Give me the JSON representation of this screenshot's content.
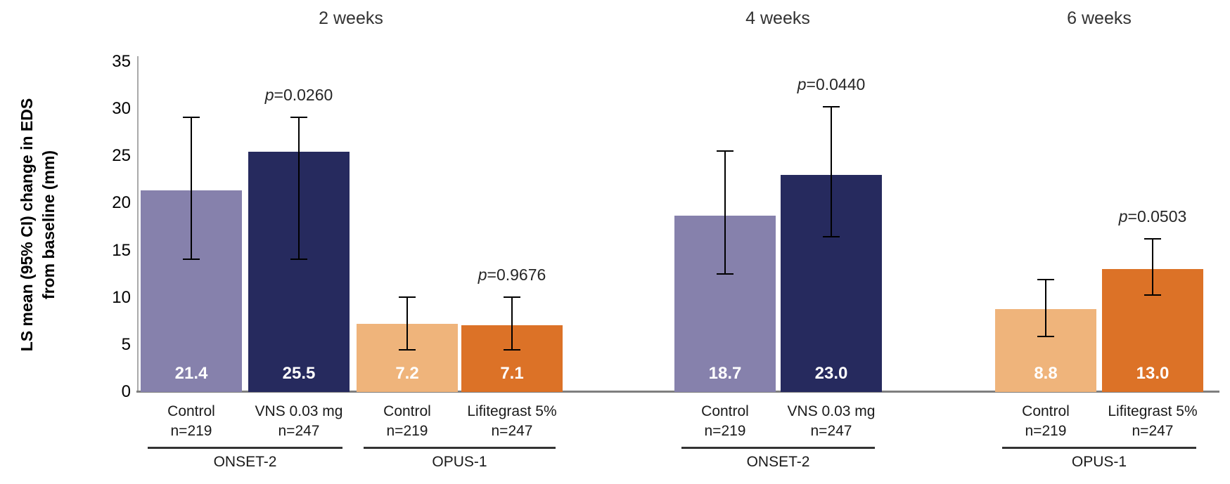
{
  "chart_data": {
    "type": "bar",
    "panel_headers": [
      "2 weeks",
      "4 weeks",
      "6 weeks"
    ],
    "ylabel_line1": "LS mean (95% CI) change in EDS",
    "ylabel_line2": "from baseline (mm)",
    "ylim": [
      0,
      35
    ],
    "yticks": [
      35,
      30,
      25,
      20,
      15,
      10,
      5,
      0
    ],
    "grid": false,
    "legend": "none",
    "colors": {
      "control_onset": "#8681AC",
      "vns": "#262A5E",
      "control_opus": "#EFB47B",
      "lifitegrast": "#DC7227",
      "axis_line": "#7f7f7f",
      "error_bar": "#000000",
      "value_text": "#ffffff"
    },
    "groups": [
      {
        "panel": "2 weeks",
        "trial": "ONSET-2",
        "bars": [
          {
            "label": "Control",
            "n": "n=219",
            "value": 21.4,
            "ci_low": 14.0,
            "ci_high": 29.2,
            "color": "control_onset",
            "p_value": null
          },
          {
            "label": "VNS 0.03 mg",
            "n": "n=247",
            "value": 25.5,
            "ci_low": 14.0,
            "ci_high": 29.2,
            "color": "vns",
            "p_value": "0.0260"
          }
        ]
      },
      {
        "panel": "2 weeks",
        "trial": "OPUS-1",
        "bars": [
          {
            "label": "Control",
            "n": "n=219",
            "value": 7.2,
            "ci_low": 4.4,
            "ci_high": 10.1,
            "color": "control_opus",
            "p_value": null
          },
          {
            "label": "Lifitegrast 5%",
            "n": "n=247",
            "value": 7.1,
            "ci_low": 4.4,
            "ci_high": 10.1,
            "color": "lifitegrast",
            "p_value": "0.9676"
          }
        ]
      },
      {
        "panel": "4 weeks",
        "trial": "ONSET-2",
        "bars": [
          {
            "label": "Control",
            "n": "n=219",
            "value": 18.7,
            "ci_low": 12.4,
            "ci_high": 25.6,
            "color": "control_onset",
            "p_value": null
          },
          {
            "label": "VNS 0.03 mg",
            "n": "n=247",
            "value": 23.0,
            "ci_low": 16.4,
            "ci_high": 30.3,
            "color": "vns",
            "p_value": "0.0440"
          }
        ]
      },
      {
        "panel": "6 weeks",
        "trial": "OPUS-1",
        "bars": [
          {
            "label": "Control",
            "n": "n=219",
            "value": 8.8,
            "ci_low": 5.8,
            "ci_high": 12.0,
            "color": "control_opus",
            "p_value": null
          },
          {
            "label": "Lifitegrast 5%",
            "n": "n=247",
            "value": 13.0,
            "ci_low": 10.2,
            "ci_high": 16.3,
            "color": "lifitegrast",
            "p_value": "0.0503"
          }
        ]
      }
    ]
  }
}
